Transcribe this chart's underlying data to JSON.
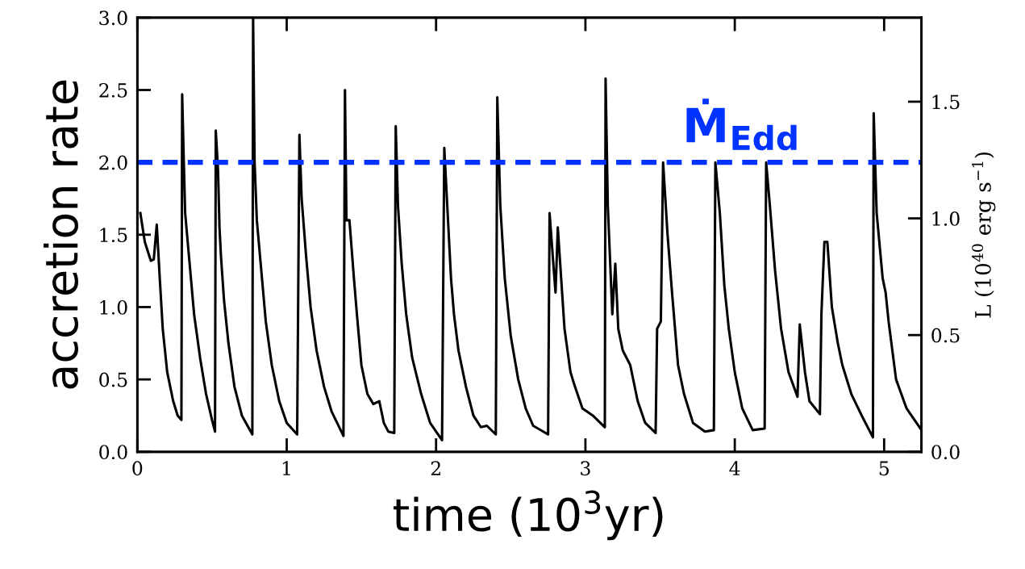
{
  "chart_data": {
    "type": "line",
    "xlabel": "time (10$^{3}$yr)",
    "ylabel": "accretion rate",
    "y2label": "L (10$^{40}$ erg s$^{−1}$)",
    "xlim": [
      0,
      5.25
    ],
    "xticks": [
      0,
      1,
      2,
      3,
      4,
      5
    ],
    "ylim": [
      0,
      3.0
    ],
    "yticks": [
      {
        "value": 0,
        "label": "0.0"
      },
      {
        "value": 0.5,
        "label": "0.5"
      },
      {
        "value": 1.0,
        "label": "1.0"
      },
      {
        "value": 1.5,
        "label": "1.5"
      },
      {
        "value": 2.0,
        "label": "2.0"
      },
      {
        "value": 2.5,
        "label": "2.5"
      },
      {
        "value": 3.0,
        "label": "3.0"
      }
    ],
    "y2lim": [
      0,
      1.86
    ],
    "y2ticks": [
      {
        "value": 0,
        "label": "0.0"
      },
      {
        "value": 0.5,
        "label": "0.5"
      },
      {
        "value": 1.0,
        "label": "1.0"
      },
      {
        "value": 1.5,
        "label": "1.5"
      }
    ],
    "grid": false,
    "line_style": "solid",
    "ref_lines": [
      {
        "axis": "y",
        "value": 2.0,
        "label": "Ṁ$_{Edd}$",
        "color": "#0033ff",
        "line_style": "dashed"
      }
    ],
    "series": [
      {
        "color": "#000000",
        "x": [
          0.02,
          0.05,
          0.09,
          0.11,
          0.13,
          0.15,
          0.17,
          0.2,
          0.24,
          0.27,
          0.295,
          0.3,
          0.31,
          0.32,
          0.35,
          0.38,
          0.42,
          0.46,
          0.5,
          0.52,
          0.525,
          0.54,
          0.55,
          0.56,
          0.58,
          0.61,
          0.65,
          0.7,
          0.77,
          0.775,
          0.785,
          0.8,
          0.83,
          0.86,
          0.9,
          0.95,
          1.0,
          1.07,
          1.085,
          1.1,
          1.13,
          1.16,
          1.2,
          1.25,
          1.3,
          1.38,
          1.39,
          1.4,
          1.42,
          1.45,
          1.47,
          1.5,
          1.54,
          1.58,
          1.62,
          1.65,
          1.68,
          1.72,
          1.73,
          1.745,
          1.77,
          1.8,
          1.84,
          1.9,
          1.96,
          2.04,
          2.055,
          2.08,
          2.1,
          2.12,
          2.15,
          2.2,
          2.25,
          2.3,
          2.34,
          2.4,
          2.41,
          2.43,
          2.46,
          2.5,
          2.55,
          2.6,
          2.65,
          2.75,
          2.76,
          2.785,
          2.8,
          2.815,
          2.86,
          2.9,
          2.93,
          2.98,
          3.05,
          3.13,
          3.135,
          3.15,
          3.18,
          3.2,
          3.22,
          3.25,
          3.3,
          3.35,
          3.4,
          3.47,
          3.48,
          3.505,
          3.52,
          3.55,
          3.58,
          3.62,
          3.66,
          3.72,
          3.8,
          3.86,
          3.87,
          3.9,
          3.93,
          3.96,
          4.0,
          4.05,
          4.12,
          4.2,
          4.21,
          4.235,
          4.27,
          4.31,
          4.36,
          4.42,
          4.435,
          4.47,
          4.5,
          4.57,
          4.58,
          4.6,
          4.62,
          4.65,
          4.69,
          4.72,
          4.78,
          4.85,
          4.925,
          4.93,
          4.95,
          4.99,
          5.01,
          5.03,
          5.08,
          5.15,
          5.25
        ],
        "values": [
          1.65,
          1.45,
          1.32,
          1.33,
          1.57,
          1.2,
          0.85,
          0.55,
          0.35,
          0.25,
          0.22,
          2.47,
          2.05,
          1.65,
          1.3,
          0.95,
          0.65,
          0.4,
          0.22,
          0.14,
          2.22,
          1.95,
          1.55,
          1.35,
          1.05,
          0.75,
          0.45,
          0.25,
          0.12,
          3.0,
          2.0,
          1.6,
          1.25,
          0.9,
          0.6,
          0.35,
          0.2,
          0.12,
          2.19,
          1.75,
          1.35,
          1.0,
          0.7,
          0.45,
          0.28,
          0.11,
          2.5,
          1.6,
          1.6,
          1.2,
          0.95,
          0.6,
          0.4,
          0.33,
          0.35,
          0.2,
          0.14,
          0.13,
          2.25,
          1.7,
          1.3,
          0.95,
          0.65,
          0.4,
          0.2,
          0.08,
          2.1,
          1.6,
          1.2,
          0.95,
          0.7,
          0.45,
          0.25,
          0.17,
          0.18,
          0.12,
          2.45,
          1.7,
          1.2,
          0.8,
          0.5,
          0.3,
          0.18,
          0.12,
          1.65,
          1.3,
          1.1,
          1.55,
          0.85,
          0.55,
          0.45,
          0.3,
          0.25,
          0.17,
          2.58,
          1.7,
          0.95,
          1.3,
          0.85,
          0.7,
          0.6,
          0.35,
          0.2,
          0.13,
          0.85,
          0.9,
          2.0,
          1.5,
          1.1,
          0.6,
          0.4,
          0.2,
          0.14,
          0.15,
          2.0,
          1.65,
          1.15,
          0.85,
          0.55,
          0.3,
          0.15,
          0.16,
          2.0,
          1.7,
          1.25,
          0.85,
          0.55,
          0.38,
          0.88,
          0.55,
          0.35,
          0.26,
          0.95,
          1.45,
          1.45,
          1.0,
          0.75,
          0.6,
          0.4,
          0.25,
          0.1,
          2.34,
          1.65,
          1.2,
          1.1,
          0.9,
          0.5,
          0.3,
          0.15
        ]
      }
    ]
  }
}
